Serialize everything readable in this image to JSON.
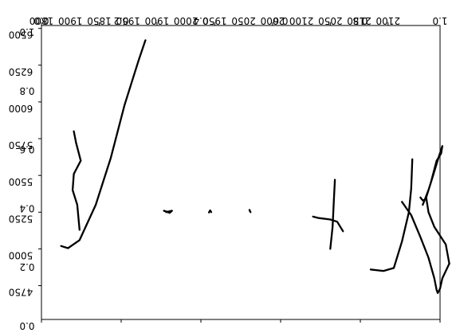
{
  "chart_data": [
    {
      "type": "line",
      "title": "",
      "xlabel": "",
      "ylabel": "",
      "xlim": [
        18000,
        21450
      ],
      "ylim": [
        6520,
        4520
      ],
      "y_inverted": true,
      "x_ticks": [
        18000,
        18500,
        19000,
        19500,
        20000,
        20500,
        21000
      ],
      "x_tick_labels": [
        "1800",
        "1850",
        "1900",
        "1950",
        "2000",
        "2050",
        "2100"
      ],
      "x_tick_labels_extra": [
        "1900",
        "1950",
        "2000",
        "2050",
        "2100",
        "2150"
      ],
      "y_ticks": [
        4750,
        5000,
        5250,
        5500,
        5750,
        6000,
        6250,
        6500
      ],
      "y_tick_labels": [
        "4750",
        "5000",
        "5250",
        "5500",
        "5750",
        "6000",
        "6250",
        "6500"
      ],
      "grid": false,
      "series": [
        {
          "x": [
            18170,
            18230,
            18330,
            18470,
            18600,
            18720,
            18840,
            18900
          ],
          "y": [
            5020,
            5005,
            5060,
            5300,
            5620,
            5980,
            6280,
            6420
          ]
        },
        {
          "x": [
            18280,
            18300,
            18340,
            18280,
            18270,
            18310,
            18330
          ],
          "y": [
            5800,
            5720,
            5600,
            5510,
            5400,
            5300,
            5130
          ]
        },
        {
          "x": [
            19060,
            19110,
            19130,
            19080
          ],
          "y": [
            5260,
            5245,
            5260,
            5250
          ]
        },
        {
          "x": [
            19450,
            19460,
            19470
          ],
          "y": [
            5248,
            5262,
            5250
          ]
        },
        {
          "x": [
            19800,
            19810,
            19805
          ],
          "y": [
            5265,
            5250,
            5255
          ]
        },
        {
          "x": [
            20350,
            20400,
            20500,
            20560,
            20610
          ],
          "y": [
            5220,
            5210,
            5200,
            5185,
            5120
          ]
        },
        {
          "x": [
            20500,
            20520,
            20530,
            20540
          ],
          "y": [
            5000,
            5150,
            5320,
            5470
          ]
        },
        {
          "x": [
            20850,
            20960,
            21050,
            21120,
            21180,
            21200,
            21210
          ],
          "y": [
            4860,
            4850,
            4870,
            5050,
            5250,
            5410,
            5610
          ]
        },
        {
          "x": [
            21280,
            21300,
            21320
          ],
          "y": [
            5350,
            5330,
            5335
          ]
        },
        {
          "x": [
            21120,
            21200,
            21280,
            21350,
            21400,
            21420,
            21430,
            21450,
            21470,
            21530
          ],
          "y": [
            5320,
            5230,
            5080,
            4940,
            4800,
            4720,
            4700,
            4730,
            4800,
            4900
          ]
        },
        {
          "x": [
            21530,
            21500,
            21400,
            21350,
            21330,
            21370,
            21420,
            21460,
            21470,
            21440,
            21390,
            21350,
            21300
          ],
          "y": [
            4900,
            5030,
            5150,
            5250,
            5350,
            5450,
            5600,
            5650,
            5700,
            5630,
            5500,
            5400,
            5300
          ]
        }
      ]
    },
    {
      "type": "line",
      "title": "",
      "xlabel": "",
      "ylabel": "",
      "xlim": [
        0,
        1
      ],
      "ylim": [
        1,
        0
      ],
      "x_ticks": [
        0,
        0.2,
        0.4,
        0.6,
        0.8,
        1.0
      ],
      "x_tick_labels": [
        "0.0",
        "0.2",
        "0.4",
        "0.6",
        "0.8",
        "1.0"
      ],
      "y_ticks": [
        0,
        0.2,
        0.4,
        0.6,
        0.8,
        1.0
      ],
      "y_tick_labels": [
        "0.0",
        "0.2",
        "0.4",
        "0.6",
        "0.8",
        "1.0"
      ],
      "grid": false
    }
  ]
}
